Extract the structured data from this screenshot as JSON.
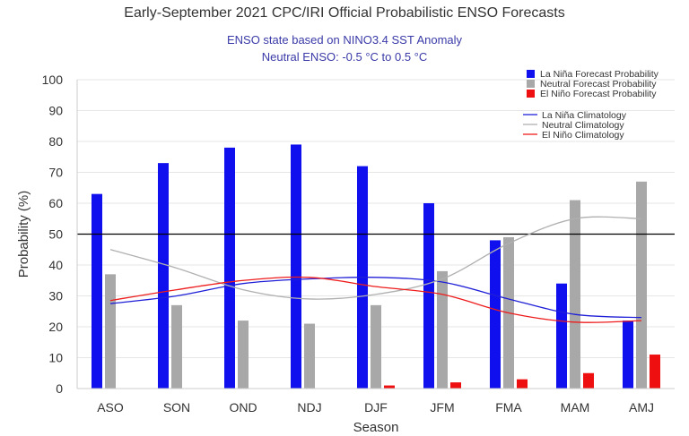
{
  "chart_data": {
    "type": "bar",
    "title": "Early-September 2021 CPC/IRI Official Probabilistic ENSO Forecasts",
    "subtitle": [
      "ENSO state based on NINO3.4 SST Anomaly",
      "Neutral ENSO: -0.5 °C to 0.5 °C"
    ],
    "xlabel": "Season",
    "ylabel": "Probability (%)",
    "ylim": [
      0,
      100
    ],
    "yticks": [
      0,
      10,
      20,
      30,
      40,
      50,
      60,
      70,
      80,
      90,
      100
    ],
    "reference_line": 50,
    "grid": "horizontal",
    "legend_position": "top-right",
    "categories": [
      "ASO",
      "SON",
      "OND",
      "NDJ",
      "DJF",
      "JFM",
      "FMA",
      "MAM",
      "AMJ"
    ],
    "series": [
      {
        "name": "La Niña Forecast Probability",
        "color": "#1010ee",
        "values": [
          63,
          73,
          78,
          79,
          72,
          60,
          48,
          34,
          22
        ]
      },
      {
        "name": "Neutral Forecast Probability",
        "color": "#a8a8a8",
        "values": [
          37,
          27,
          22,
          21,
          27,
          38,
          49,
          61,
          67
        ]
      },
      {
        "name": "El Niño Forecast Probability",
        "color": "#ee1010",
        "values": [
          0,
          0,
          0,
          0,
          1,
          2,
          3,
          5,
          11
        ]
      }
    ],
    "lines": [
      {
        "name": "La Niña Climatology",
        "color": "#1f1fd8",
        "values": [
          27.5,
          30,
          34,
          35.5,
          36,
          34.5,
          29,
          24,
          23
        ]
      },
      {
        "name": "Neutral Climatology",
        "color": "#b0b0b0",
        "values": [
          45,
          39,
          32,
          29,
          30.5,
          35.5,
          47,
          55,
          55
        ]
      },
      {
        "name": "El Niño Climatology",
        "color": "#ee1c1c",
        "values": [
          28.5,
          32,
          35,
          36,
          33,
          30.5,
          24.5,
          21.5,
          22
        ]
      }
    ]
  }
}
